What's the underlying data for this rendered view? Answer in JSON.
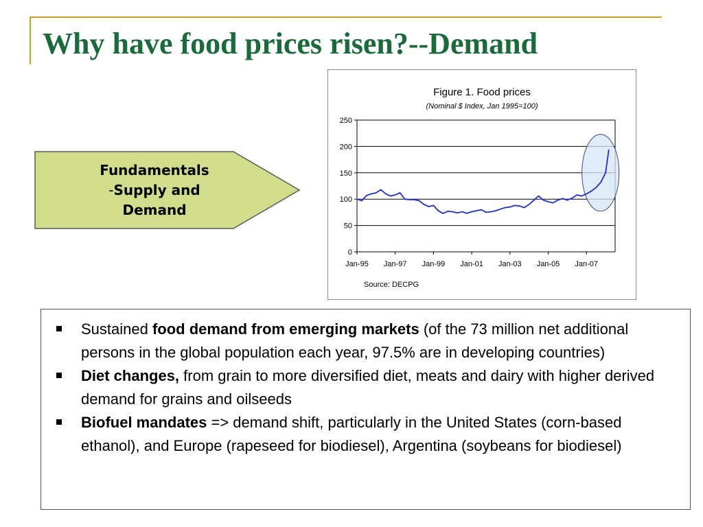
{
  "slide": {
    "title": "Why have food prices risen?--Demand"
  },
  "arrow_box": {
    "line1": "Fundamentals",
    "line2_dash": "-",
    "line2_text": "Supply and",
    "line3": "Demand",
    "fill_color": "#d2dd8c"
  },
  "chart_data": {
    "type": "line",
    "title": "Figure 1. Food prices",
    "subtitle": "(Nominal $ Index, Jan 1995=100)",
    "source": "Source: DECPG",
    "xlabel": "",
    "ylabel": "",
    "ylim": [
      0,
      250
    ],
    "yticks": [
      0,
      50,
      100,
      150,
      200,
      250
    ],
    "xlim": [
      "Jan-95",
      "Mar-08"
    ],
    "xtick_labels": [
      "Jan-95",
      "Jan-97",
      "Jan-99",
      "Jan-01",
      "Jan-03",
      "Jan-05",
      "Jan-07"
    ],
    "grid": "horizontal",
    "line_color": "#1f2fd6",
    "highlight": "ellipse around the 2007–2008 rise",
    "series": [
      {
        "x": [
          "Jan-95",
          "Apr-95",
          "Jul-95",
          "Oct-95",
          "Jan-96",
          "Apr-96",
          "Jul-96",
          "Oct-96",
          "Jan-97",
          "Apr-97",
          "Jul-97",
          "Oct-97",
          "Jan-98",
          "Apr-98",
          "Jul-98",
          "Oct-98",
          "Jan-99",
          "Apr-99",
          "Jul-99",
          "Oct-99",
          "Jan-00",
          "Apr-00",
          "Jul-00",
          "Oct-00",
          "Jan-01",
          "Apr-01",
          "Jul-01",
          "Oct-01",
          "Jan-02",
          "Apr-02",
          "Jul-02",
          "Oct-02",
          "Jan-03",
          "Apr-03",
          "Jul-03",
          "Oct-03",
          "Jan-04",
          "Apr-04",
          "Jul-04",
          "Oct-04",
          "Jan-05",
          "Apr-05",
          "Jul-05",
          "Oct-05",
          "Jan-06",
          "Apr-06",
          "Jul-06",
          "Oct-06",
          "Jan-07",
          "Apr-07",
          "Jul-07",
          "Oct-07",
          "Jan-08",
          "Mar-08"
        ],
        "values": [
          100,
          97,
          107,
          110,
          112,
          118,
          110,
          106,
          108,
          112,
          100,
          99,
          99,
          97,
          90,
          86,
          88,
          78,
          73,
          77,
          76,
          74,
          76,
          73,
          76,
          78,
          80,
          75,
          76,
          78,
          81,
          84,
          85,
          88,
          87,
          84,
          90,
          98,
          106,
          98,
          95,
          93,
          98,
          101,
          98,
          102,
          108,
          106,
          110,
          115,
          122,
          132,
          150,
          193
        ]
      }
    ]
  },
  "bullets": [
    {
      "pre": "Sustained ",
      "bold": "food demand from emerging markets",
      "post": " (of the 73 million net additional persons in the global population each year, 97.5% are in developing countries)"
    },
    {
      "pre": "",
      "bold": "Diet changes,",
      "post": " from grain to more diversified diet,  meats and dairy with higher derived demand for grains and oilseeds"
    },
    {
      "pre": "",
      "bold": "Biofuel mandates",
      "post": " => demand shift, particularly in the United States (corn-based ethanol), and Europe (rapeseed for biodiesel), Argentina (soybeans for biodiesel)"
    }
  ]
}
